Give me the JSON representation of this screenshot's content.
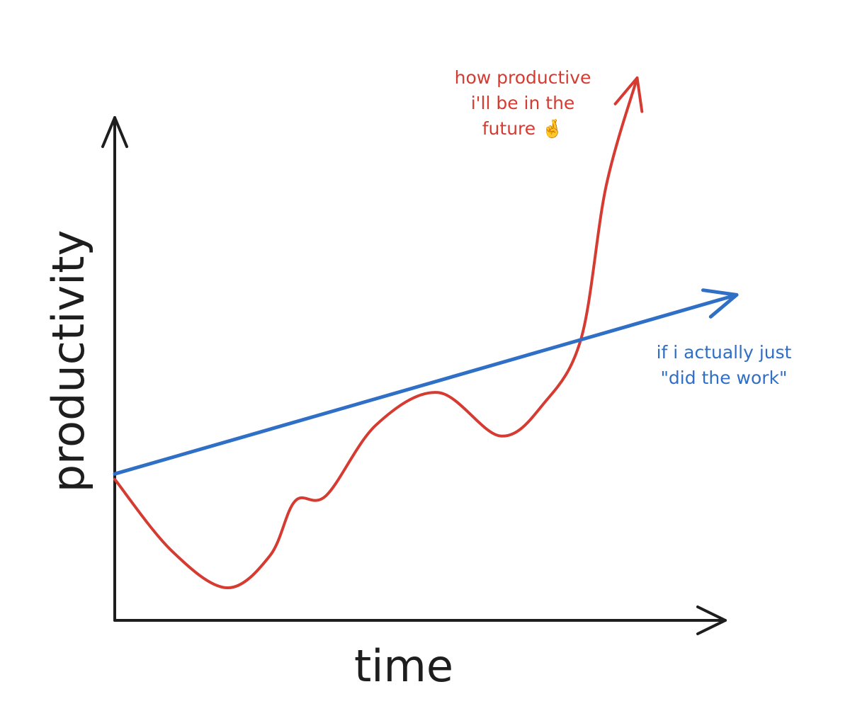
{
  "chart_data": {
    "type": "line",
    "xlabel": "time",
    "ylabel": "productivity",
    "xlim": [
      0,
      10
    ],
    "ylim": [
      0,
      10
    ],
    "grid": false,
    "legend": "none",
    "series": [
      {
        "color": "#d63b32",
        "x": [
          0,
          0.9,
          1.8,
          2.5,
          2.9,
          3.4,
          4.2,
          5.2,
          6.2,
          6.9,
          7.5,
          7.9,
          8.4
        ],
        "y": [
          2.6,
          1.3,
          0.6,
          1.2,
          2.2,
          2.3,
          3.6,
          4.2,
          3.4,
          4.0,
          5.2,
          8.0,
          10.0
        ]
      },
      {
        "color": "#2f6fc6",
        "x": [
          0,
          10
        ],
        "y": [
          2.7,
          6.0
        ]
      }
    ],
    "annotations": [
      {
        "color": "#d63b32",
        "lines": [
          "how productive",
          "i'll be in the",
          "future 🤞"
        ]
      },
      {
        "color": "#2f6fc6",
        "lines": [
          "if i actually just",
          "\"did the work\""
        ]
      }
    ]
  }
}
